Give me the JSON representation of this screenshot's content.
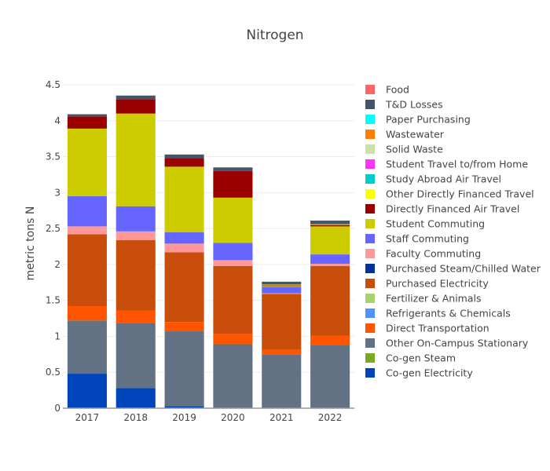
{
  "chart_data": {
    "type": "bar",
    "barmode": "stack",
    "title": "Nitrogen",
    "xlabel": "",
    "ylabel": "metric tons N",
    "ylim": [
      0,
      4.5
    ],
    "yticks": [
      0,
      0.5,
      1,
      1.5,
      2,
      2.5,
      3,
      3.5,
      4,
      4.5
    ],
    "ytick_labels": [
      "0",
      "0.5",
      "1",
      "1.5",
      "2",
      "2.5",
      "3",
      "3.5",
      "4",
      "4.5"
    ],
    "grid": true,
    "legend_placement": "right",
    "categories": [
      "2017",
      "2018",
      "2019",
      "2020",
      "2021",
      "2022"
    ],
    "series": [
      {
        "name": "Co-gen Electricity",
        "color": "#0044BB",
        "values": [
          0.48,
          0.28,
          0.03,
          0,
          0,
          0
        ]
      },
      {
        "name": "Co-gen Steam",
        "color": "#77AA22",
        "values": [
          0,
          0,
          0,
          0,
          0,
          0
        ]
      },
      {
        "name": "Other On-Campus Stationary",
        "color": "#627284",
        "values": [
          0.74,
          0.9,
          1.04,
          0.89,
          0.75,
          0.88
        ]
      },
      {
        "name": "Direct Transportation",
        "color": "#FF5500",
        "values": [
          0.2,
          0.18,
          0.13,
          0.14,
          0.06,
          0.13
        ]
      },
      {
        "name": "Refrigerants & Chemicals",
        "color": "#4D94FF",
        "values": [
          0,
          0,
          0,
          0,
          0,
          0
        ]
      },
      {
        "name": "Fertilizer & Animals",
        "color": "#A8D26A",
        "values": [
          0,
          0,
          0,
          0,
          0,
          0
        ]
      },
      {
        "name": "Purchased Electricity",
        "color": "#C94E0C",
        "values": [
          1.0,
          0.98,
          0.97,
          0.95,
          0.78,
          0.97
        ]
      },
      {
        "name": "Purchased Steam/Chilled Water",
        "color": "#003399",
        "values": [
          0,
          0,
          0,
          0,
          0,
          0
        ]
      },
      {
        "name": "Faculty Commuting",
        "color": "#FF9999",
        "values": [
          0.11,
          0.12,
          0.12,
          0.08,
          0.01,
          0.03
        ]
      },
      {
        "name": "Staff Commuting",
        "color": "#6666FF",
        "values": [
          0.42,
          0.35,
          0.16,
          0.24,
          0.09,
          0.13
        ]
      },
      {
        "name": "Student Commuting",
        "color": "#CCCC00",
        "values": [
          0.94,
          1.29,
          0.91,
          0.63,
          0.01,
          0.39
        ]
      },
      {
        "name": "Directly Financed Air Travel",
        "color": "#990000",
        "values": [
          0.17,
          0.2,
          0.12,
          0.37,
          0.01,
          0.02
        ]
      },
      {
        "name": "Other Directly Financed Travel",
        "color": "#FFFF00",
        "values": [
          0,
          0,
          0,
          0,
          0.01,
          0.01
        ]
      },
      {
        "name": "Study Abroad Air Travel",
        "color": "#00CCCC",
        "values": [
          0,
          0,
          0,
          0,
          0,
          0
        ]
      },
      {
        "name": "Student Travel to/from Home",
        "color": "#FF33FF",
        "values": [
          0,
          0,
          0,
          0,
          0,
          0
        ]
      },
      {
        "name": "Solid Waste",
        "color": "#CCE0A8",
        "values": [
          0,
          0,
          0,
          0,
          0,
          0
        ]
      },
      {
        "name": "Wastewater",
        "color": "#FF8000",
        "values": [
          0,
          0,
          0,
          0,
          0,
          0
        ]
      },
      {
        "name": "Paper Purchasing",
        "color": "#00FFFF",
        "values": [
          0,
          0,
          0,
          0,
          0,
          0
        ]
      },
      {
        "name": "T&D Losses",
        "color": "#44546A",
        "values": [
          0.03,
          0.05,
          0.05,
          0.05,
          0.04,
          0.05
        ]
      },
      {
        "name": "Food",
        "color": "#FF6666",
        "values": [
          0,
          0,
          0,
          0,
          0,
          0
        ]
      }
    ]
  }
}
